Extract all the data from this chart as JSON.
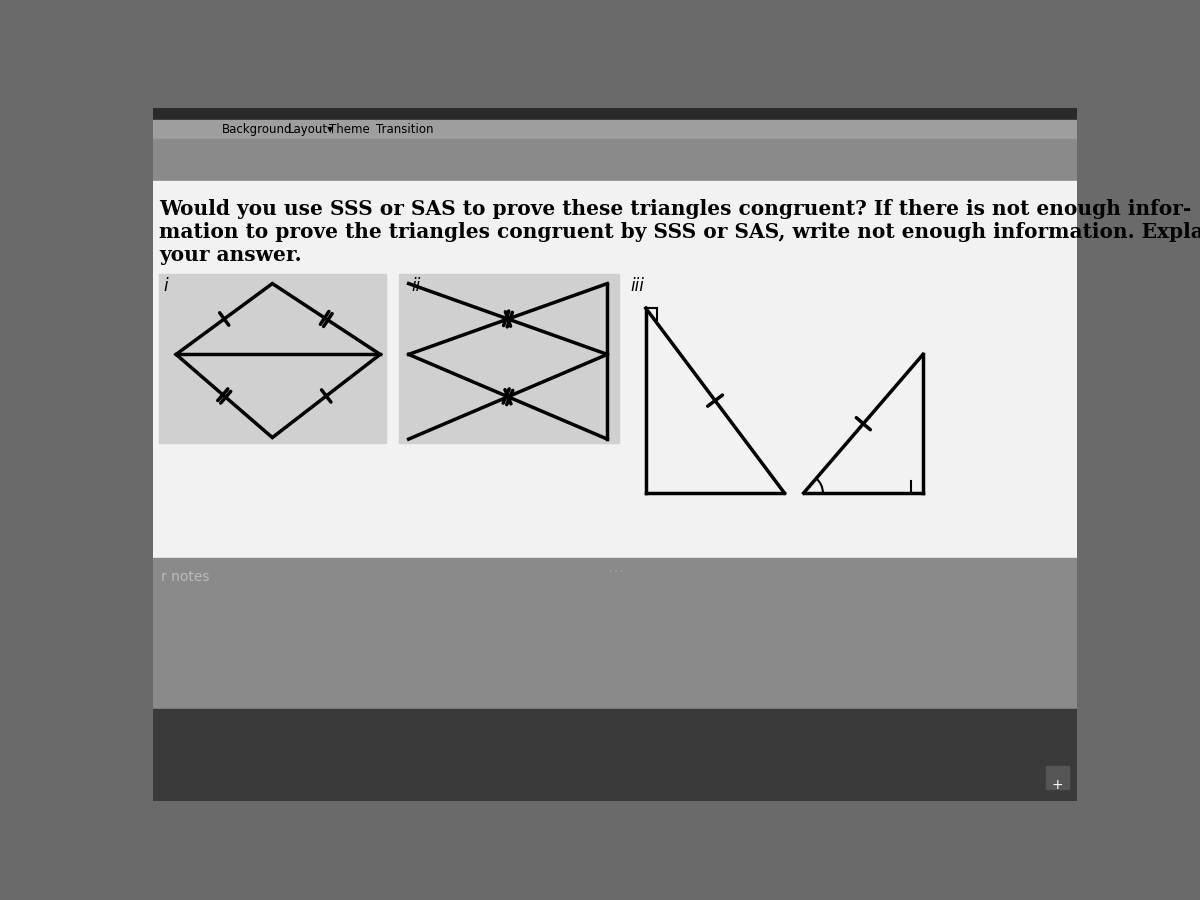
{
  "bg_outer": "#6a6a6a",
  "bg_toolbar": "#9a9a9a",
  "bg_content": "#f2f2f2",
  "bg_lower_gray": "#8a8a8a",
  "bg_bottom_dark": "#3a3a3a",
  "diagram_bg": "#d0d0d0",
  "text_color": "#000000",
  "title_line1": "Would you use SSS or SAS to prove these triangles congruent? If there is not enough infor-",
  "title_line2": "mation to prove the triangles congruent by SSS or SAS, write not enough information. Explain",
  "title_line3": "your answer.",
  "label_i": "i",
  "label_ii": "ii",
  "label_iii": "iii",
  "notes_text": "r notes"
}
